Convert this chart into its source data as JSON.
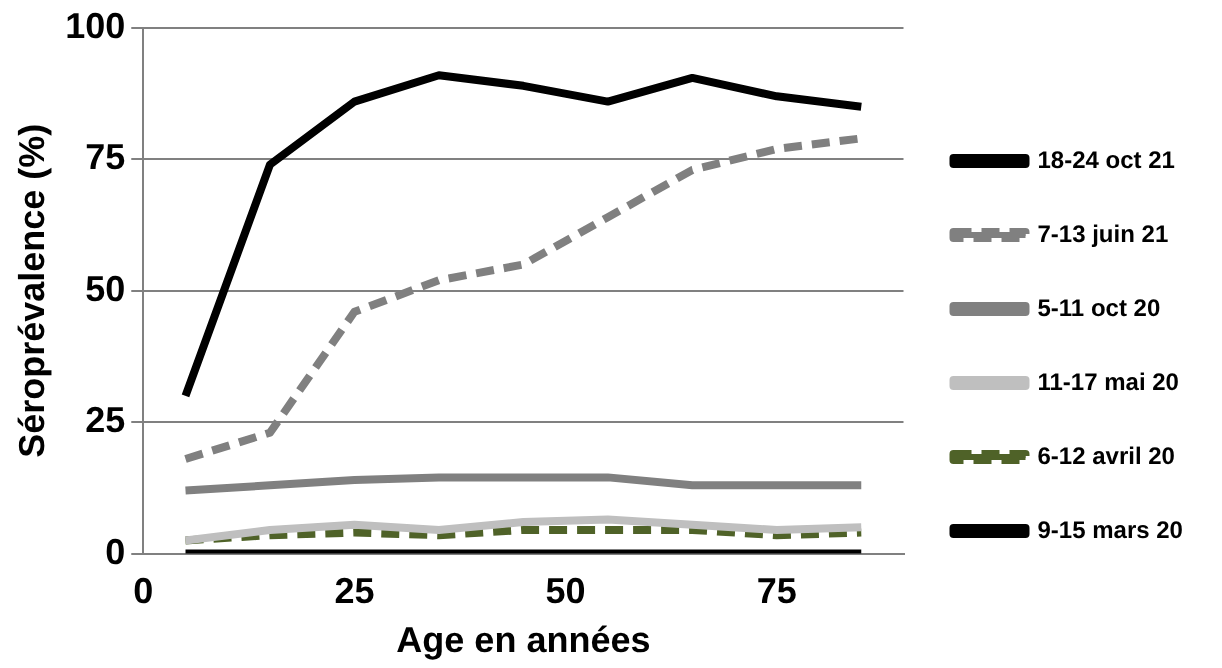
{
  "chart_data": {
    "type": "line",
    "xlabel": "Age en années",
    "ylabel": "Séroprévalence (%)",
    "x": [
      5,
      15,
      25,
      35,
      45,
      55,
      65,
      75,
      85
    ],
    "xlim": [
      0,
      90
    ],
    "xticks": [
      0,
      25,
      50,
      75
    ],
    "ylim": [
      0,
      100
    ],
    "yticks": [
      0,
      25,
      50,
      75,
      100
    ],
    "grid": "y",
    "legend": "right",
    "marker": "none",
    "series": [
      {
        "name": "18-24 oct 21",
        "color": "#000000",
        "line_style": "solid",
        "values": [
          30,
          74,
          86,
          91,
          89,
          86,
          90.5,
          87,
          85
        ]
      },
      {
        "name": "7-13 juin 21",
        "color": "#808080",
        "line_style": "dashed",
        "values": [
          18,
          23,
          46,
          52,
          55,
          64,
          73,
          77,
          79
        ]
      },
      {
        "name": "5-11 oct 20",
        "color": "#808080",
        "line_style": "solid",
        "values": [
          12,
          13,
          14,
          14.5,
          14.5,
          14.5,
          13,
          13,
          13
        ]
      },
      {
        "name": "11-17 mai 20",
        "color": "#bfbfbf",
        "line_style": "solid",
        "values": [
          2.5,
          4.5,
          5.5,
          4.5,
          6,
          6.5,
          5.5,
          4.5,
          5
        ]
      },
      {
        "name": "6-12 avril 20",
        "color": "#4f6228",
        "line_style": "dashed",
        "values": [
          2.5,
          3.5,
          4,
          3.5,
          4.5,
          4.5,
          4.5,
          3.5,
          4
        ]
      },
      {
        "name": "9-15 mars 20",
        "color": "#000000",
        "line_style": "solid",
        "values": [
          0,
          0,
          0,
          0,
          0,
          0,
          0,
          0,
          0
        ]
      }
    ]
  }
}
